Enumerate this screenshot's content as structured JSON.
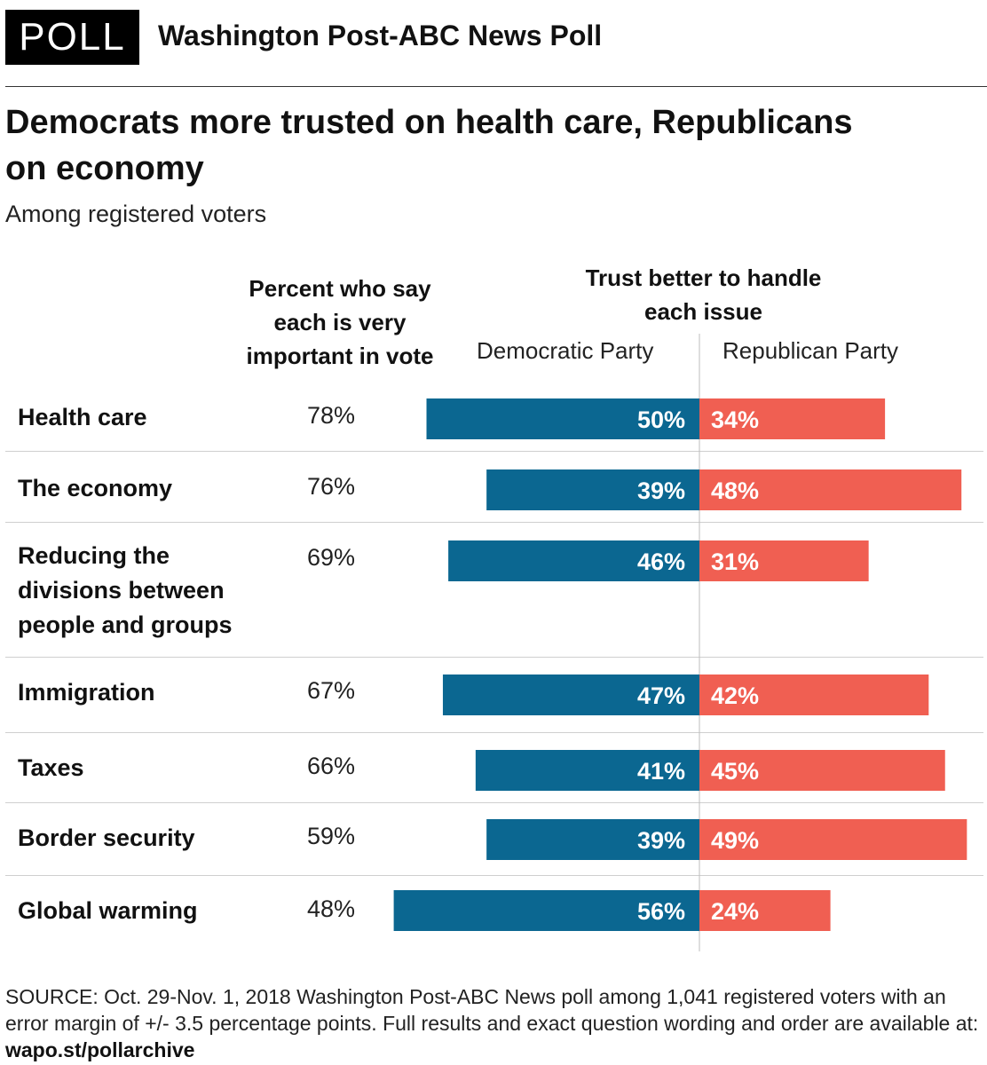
{
  "header": {
    "badge": "POLL",
    "title": "Washington Post-ABC News Poll"
  },
  "chart_data": {
    "type": "bar",
    "title": "Democrats more trusted on health care, Republicans on economy",
    "subtitle": "Among registered voters",
    "column_heading_important": "Percent who say each is very important in vote",
    "column_heading_trust": "Trust better to handle each issue",
    "categories": [
      "Health care",
      "The economy",
      "Reducing the divisions between people and groups",
      "Immigration",
      "Taxes",
      "Border security",
      "Global warming"
    ],
    "very_important": [
      "78%",
      "76%",
      "69%",
      "67%",
      "66%",
      "59%",
      "48%"
    ],
    "series": [
      {
        "name": "Democratic Party",
        "values": [
          50,
          39,
          46,
          47,
          41,
          39,
          56
        ],
        "color": "#0b6791"
      },
      {
        "name": "Republican Party",
        "values": [
          34,
          48,
          31,
          42,
          45,
          49,
          24
        ],
        "color": "#f05f52"
      }
    ],
    "value_suffix": "%",
    "layout": "diverging horizontal bars"
  },
  "footer": {
    "source_text": "SOURCE: Oct. 29-Nov. 1, 2018 Washington Post-ABC News poll among 1,041 registered voters with an error margin of +/- 3.5 percentage points. Full results and exact question wording and order are available at:",
    "source_link": "wapo.st/pollarchive"
  }
}
